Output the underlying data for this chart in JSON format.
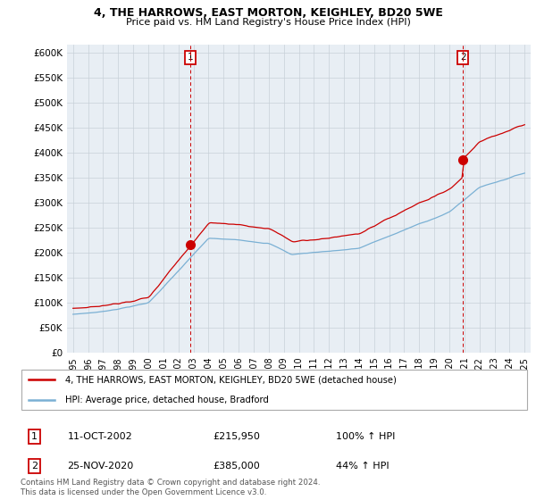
{
  "title1": "4, THE HARROWS, EAST MORTON, KEIGHLEY, BD20 5WE",
  "title2": "Price paid vs. HM Land Registry's House Price Index (HPI)",
  "ylabel_ticks": [
    "£0",
    "£50K",
    "£100K",
    "£150K",
    "£200K",
    "£250K",
    "£300K",
    "£350K",
    "£400K",
    "£450K",
    "£500K",
    "£550K",
    "£600K"
  ],
  "ytick_values": [
    0,
    50000,
    100000,
    150000,
    200000,
    250000,
    300000,
    350000,
    400000,
    450000,
    500000,
    550000,
    600000
  ],
  "ylim": [
    0,
    615000
  ],
  "xlim_start": 1994.6,
  "xlim_end": 2025.4,
  "xticks": [
    1995,
    1996,
    1997,
    1998,
    1999,
    2000,
    2001,
    2002,
    2003,
    2004,
    2005,
    2006,
    2007,
    2008,
    2009,
    2010,
    2011,
    2012,
    2013,
    2014,
    2015,
    2016,
    2017,
    2018,
    2019,
    2020,
    2021,
    2022,
    2023,
    2024,
    2025
  ],
  "red_line_color": "#cc0000",
  "blue_line_color": "#7ab0d4",
  "bg_plot_color": "#e8eef4",
  "sale1_x": 2002.78,
  "sale1_y": 215950,
  "sale2_x": 2020.9,
  "sale2_y": 385000,
  "legend_label_red": "4, THE HARROWS, EAST MORTON, KEIGHLEY, BD20 5WE (detached house)",
  "legend_label_blue": "HPI: Average price, detached house, Bradford",
  "table_row1": [
    "1",
    "11-OCT-2002",
    "£215,950",
    "100% ↑ HPI"
  ],
  "table_row2": [
    "2",
    "25-NOV-2020",
    "£385,000",
    "44% ↑ HPI"
  ],
  "footnote": "Contains HM Land Registry data © Crown copyright and database right 2024.\nThis data is licensed under the Open Government Licence v3.0.",
  "bg_color": "#ffffff",
  "grid_color": "#c8d0d8"
}
